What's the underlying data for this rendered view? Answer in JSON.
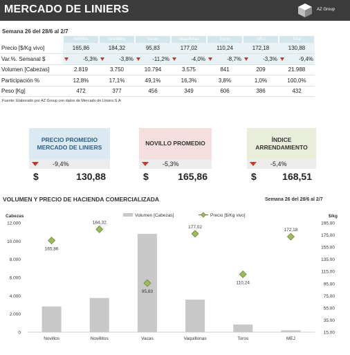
{
  "header": {
    "title": "MERCADO DE LINIERS",
    "logo_text": "AZ Group"
  },
  "week_label": "Semana 26 del 28/6 al 2/7",
  "table": {
    "columns": [
      "Novillos",
      "Novillitos",
      "Vacas",
      "Vaquillonas",
      "Toros",
      "MEJ",
      "Total"
    ],
    "rows": [
      {
        "label": "Precio [$/Kg vivo]",
        "values": [
          "165,86",
          "184,32",
          "95,83",
          "177,02",
          "110,24",
          "172,18",
          "130,88"
        ]
      },
      {
        "label": "Var.%. Semanal $",
        "values": [
          "-5,3%",
          "-3,8%",
          "-11,2%",
          "-4,0%",
          "-8,7%",
          "-3,3%",
          "-9,4%"
        ]
      },
      {
        "label": "Volumen [Cabezas]",
        "values": [
          "2.819",
          "3.750",
          "10.794",
          "3.575",
          "841",
          "209",
          "21.988"
        ]
      },
      {
        "label": "Participación %",
        "values": [
          "12,8%",
          "17,1%",
          "49,1%",
          "16,3%",
          "3,8%",
          "1,0%",
          "100,0%"
        ]
      },
      {
        "label": "Peso  [Kg]",
        "values": [
          "472",
          "377",
          "456",
          "349",
          "606",
          "386",
          "432"
        ]
      }
    ],
    "source": "Fuente: Elaborado por AZ Group con datos de Mercado de Liniers S.A"
  },
  "cards": [
    {
      "title_line1": "PRECIO PROMEDIO",
      "title_line2": "MERCADO DE LINIERS",
      "var": "-9,4%",
      "currency": "$",
      "value": "130,88",
      "bg": "#dbeaf2",
      "title_color": "#2e5f8a"
    },
    {
      "title_line1": "NOVILLO PROMEDIO",
      "title_line2": "",
      "var": "-5,3%",
      "currency": "$",
      "value": "165,86",
      "bg": "#f5dede",
      "title_color": "#333333"
    },
    {
      "title_line1": "ÍNDICE",
      "title_line2": "ARRENDAMIENTO",
      "var": "-5,4%",
      "currency": "$",
      "value": "168,51",
      "bg": "#e9eedb",
      "title_color": "#333333"
    }
  ],
  "section": {
    "title": "VOLUMEN Y PRECIO DE HACIENDA COMERCIALIZADA",
    "week": "Semana 26 del 28/6 al 2/7"
  },
  "colors": {
    "header_bg": "#3b3b3b",
    "bar": "#c8c8c8",
    "marker_fill": "#9bbb59",
    "marker_stroke": "#6b7a2e",
    "down_triangle": "#c0392b",
    "table_header": "#d3e6ec"
  },
  "chart_data": {
    "type": "bar",
    "categories": [
      "Novillos",
      "Novillitos",
      "Vacas",
      "Vaquillonas",
      "Toros",
      "MEJ"
    ],
    "series": [
      {
        "name": "Volumen [Cabezas]",
        "kind": "bar",
        "axis": "left",
        "values": [
          2819,
          3750,
          10794,
          3575,
          841,
          209
        ]
      },
      {
        "name": "Precio [$/Kg vivo]",
        "kind": "marker",
        "axis": "right",
        "values": [
          165.86,
          184.32,
          95.83,
          177.02,
          110.24,
          172.18
        ],
        "labels": [
          "165,86",
          "184,32",
          "95,83",
          "177,02",
          "110,24",
          "172,18"
        ]
      }
    ],
    "ylabel_left": "Cabezas",
    "ylabel_right": "$/kg",
    "ylim_left": [
      0,
      12000
    ],
    "yticks_left": [
      "0",
      "2.000",
      "4.000",
      "6.000",
      "8.000",
      "10.000",
      "12.000"
    ],
    "ylim_right": [
      15,
      195
    ],
    "yticks_right": [
      "15,00",
      "35,00",
      "55,00",
      "75,00",
      "95,00",
      "115,00",
      "135,00",
      "155,00",
      "175,00",
      "195,00"
    ],
    "legend_position": "top"
  }
}
